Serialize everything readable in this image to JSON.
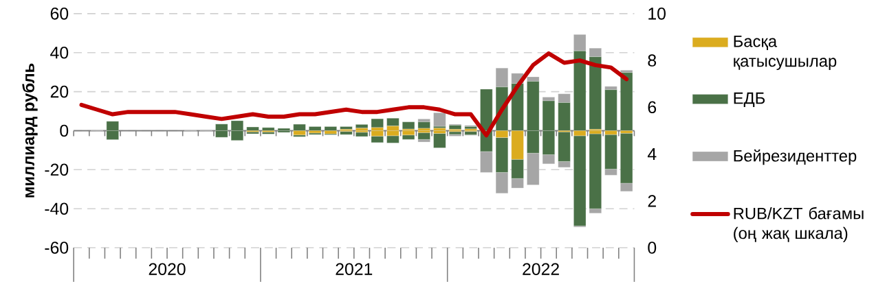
{
  "chart_data": {
    "type": "bar",
    "stacked": true,
    "ylabel": "миллиард рубль",
    "categories": [
      null,
      null,
      null,
      null,
      null,
      null,
      null,
      null,
      null,
      null,
      null,
      null,
      null,
      null,
      null,
      null,
      null,
      null,
      null,
      null,
      null,
      null,
      null,
      null,
      null,
      null,
      null,
      null,
      null,
      null,
      null,
      null,
      null,
      null,
      null,
      null
    ],
    "ylim": [
      -60,
      60
    ],
    "yticks": [
      -60,
      -40,
      -20,
      0,
      20,
      40,
      60
    ],
    "y2lim": [
      0,
      10
    ],
    "y2ticks": [
      0,
      2,
      4,
      6,
      8,
      10
    ],
    "grid": "y",
    "legend": "right",
    "annotations": [
      "2020",
      "2021",
      "2022"
    ],
    "series": [
      {
        "name": "Басқа қатысушылар",
        "color": "#dbac1f",
        "values": [
          0,
          0,
          0,
          0,
          0,
          0,
          0,
          0,
          0,
          0,
          0,
          0,
          0,
          0,
          0,
          0,
          0,
          0.7,
          1.3,
          1.6,
          2.4,
          0.8,
          1.2,
          1.3,
          0.7,
          0.9,
          0,
          0,
          0,
          0,
          0,
          0,
          0,
          0.7,
          0,
          0
        ]
      },
      {
        "name": "ЕДБ",
        "color": "#4a7147",
        "values": [
          0,
          0,
          4.8,
          0,
          0,
          0,
          0,
          0,
          0,
          3.4,
          5.1,
          1.9,
          1.6,
          1.2,
          3.3,
          2.1,
          2.1,
          1.4,
          1.9,
          4.5,
          4.0,
          3.7,
          3.3,
          0.9,
          2.1,
          1.2,
          21.3,
          22.4,
          24.2,
          25.3,
          15.3,
          14.4,
          40.9,
          37.2,
          21.0,
          29.8
        ]
      },
      {
        "name": "Бейрезиденттер",
        "color": "#a6a6a6",
        "values": [
          0,
          0.3,
          0,
          0,
          0,
          0,
          0,
          0.3,
          0.4,
          0,
          0,
          0,
          0,
          0,
          0,
          0,
          0,
          0,
          0,
          0,
          0,
          0,
          1.5,
          7.0,
          0.5,
          0.6,
          0,
          9.7,
          5.2,
          2.3,
          1.9,
          4.5,
          8.4,
          4.4,
          1.7,
          1.2
        ]
      },
      {
        "color": "#dbac1f",
        "values": [
          0,
          0,
          0,
          0,
          0,
          0,
          0,
          0,
          0,
          0,
          0,
          -0.6,
          -0.7,
          0,
          -2.2,
          -1.2,
          -1.6,
          -0.4,
          -0.8,
          -2.8,
          -2.6,
          -2.2,
          -1.0,
          -1.4,
          -0.5,
          -0.4,
          0,
          -3.5,
          -14.7,
          0,
          0,
          -0.6,
          -2.6,
          -1.6,
          -2.0,
          -1.3
        ]
      },
      {
        "color": "#4a7147",
        "values": [
          0,
          0,
          -4.6,
          0,
          0,
          0,
          0,
          0,
          0,
          -3.4,
          -5.0,
          -1.0,
          -1.0,
          -0.9,
          -0.9,
          -0.8,
          -0.5,
          -1.6,
          -2.2,
          -3.3,
          -3.7,
          -2.3,
          -3.5,
          -7.4,
          -1.4,
          -1.7,
          -10.7,
          -17.9,
          -9.8,
          -11.5,
          -12.3,
          -15.2,
          -46.2,
          -38.4,
          -17.7,
          -25.6
        ]
      },
      {
        "color": "#a6a6a6",
        "values": [
          0,
          0,
          0,
          0,
          0,
          0,
          0,
          0,
          0,
          0,
          0,
          0,
          0,
          0,
          0,
          0,
          0,
          0,
          0,
          0,
          0,
          0,
          -1.3,
          0,
          -0.9,
          -0.3,
          -10.7,
          -10.7,
          -4.9,
          -16.3,
          -4.7,
          -3.0,
          -0.6,
          -2.3,
          -3.1,
          -4.2
        ]
      },
      {
        "name": "RUB/KZT бағамы (оң жақ шкала)",
        "type": "line",
        "axis": "y2",
        "color": "#c00000",
        "marker": "none",
        "line_style": "solid",
        "values": [
          6.1,
          5.9,
          5.7,
          5.8,
          5.8,
          5.8,
          5.8,
          5.7,
          5.6,
          5.5,
          5.6,
          5.7,
          5.6,
          5.6,
          5.7,
          5.7,
          5.8,
          5.9,
          5.8,
          5.8,
          5.9,
          6.0,
          6.0,
          5.9,
          5.7,
          5.7,
          4.8,
          5.9,
          6.9,
          7.8,
          8.3,
          7.9,
          8.0,
          7.8,
          7.7,
          7.2
        ]
      }
    ]
  }
}
